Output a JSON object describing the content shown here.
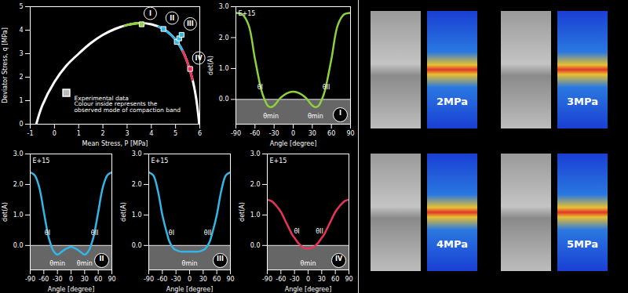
{
  "chart_data": [
    {
      "type": "line",
      "x_label": "Mean Stress, P [MPa]",
      "y_label": "Deviator Stress, q [MPa]",
      "xlim": [
        -1,
        6
      ],
      "ylim": [
        0,
        5
      ],
      "xticks": [
        -1,
        0,
        1,
        2,
        3,
        4,
        5,
        6
      ],
      "yticks": [
        0,
        1,
        2,
        3,
        4,
        5
      ],
      "series": [
        {
          "color": "#ffffff",
          "x": [
            -0.75,
            -0.5,
            0,
            0.5,
            1,
            1.5,
            2,
            2.5,
            3,
            3.5,
            4,
            4.5,
            5,
            5.3,
            5.5,
            5.7,
            5.85,
            5.98
          ],
          "values": [
            0,
            0.8,
            1.8,
            2.5,
            3.0,
            3.45,
            3.8,
            4.05,
            4.22,
            4.3,
            4.25,
            4.05,
            3.6,
            3.1,
            2.6,
            1.9,
            1.1,
            0
          ]
        },
        {
          "color": "#8ed13c",
          "x": [
            2.9,
            3,
            3.5,
            3.7
          ],
          "values": [
            4.19,
            4.22,
            4.3,
            4.29
          ]
        },
        {
          "color": "#33b5e5",
          "x": [
            4.3,
            4.5,
            5,
            5.3
          ],
          "values": [
            4.15,
            4.05,
            3.6,
            3.1
          ]
        },
        {
          "color": "#e8325a",
          "x": [
            5.3,
            5.5,
            5.7
          ],
          "values": [
            3.1,
            2.6,
            1.9
          ]
        }
      ],
      "points": {
        "x": [
          3.6,
          4.5,
          5.05,
          5.15,
          5.25,
          5.6
        ],
        "y": [
          4.25,
          4.05,
          3.5,
          3.65,
          3.8,
          2.35
        ],
        "colors": [
          "#8ed13c",
          "#33b5e5",
          "#33b5e5",
          "#33b5e5",
          "#33b5e5",
          "#e8325a"
        ],
        "labels": [
          "I",
          "II",
          null,
          null,
          "III",
          "IV"
        ]
      },
      "legend_text": [
        "Experimental data",
        "Colour inside represents the",
        "observed mode of compaction band"
      ]
    },
    {
      "type": "line",
      "title": "I",
      "x_label": "Angle [degree]",
      "y_label": "det(A)",
      "multiplier": "E+15",
      "xlim": [
        -90,
        90
      ],
      "ylim": [
        -0.8,
        3.0
      ],
      "xticks": [
        -90,
        -60,
        -30,
        0,
        30,
        60,
        90
      ],
      "yticks": [
        {
          "value": 0,
          "label": "0.0"
        },
        {
          "value": 1,
          "label": "1.0"
        },
        {
          "value": 2,
          "label": "2.0"
        },
        {
          "value": 3,
          "label": "3.0"
        }
      ],
      "hatched_region": [
        -0.8,
        0
      ],
      "series": [
        {
          "color": "#8ed13c",
          "x": [
            -90,
            -80,
            -70,
            -60,
            -50,
            -45,
            -40,
            -35,
            -30,
            -20,
            -10,
            0,
            10,
            20,
            30,
            35,
            40,
            45,
            50,
            60,
            70,
            80,
            90
          ],
          "values": [
            2.8,
            2.75,
            2.4,
            1.3,
            0.3,
            0.0,
            -0.2,
            -0.25,
            -0.2,
            0.05,
            0.2,
            0.25,
            0.2,
            0.05,
            -0.2,
            -0.25,
            -0.2,
            0.0,
            0.3,
            1.3,
            2.4,
            2.75,
            2.8
          ]
        }
      ],
      "annotations": [
        {
          "text": "θI",
          "x": -52,
          "y": 0.4
        },
        {
          "text": "θII",
          "x": 52,
          "y": 0.4
        },
        {
          "text": "θmin",
          "x": -35,
          "y": -0.55
        },
        {
          "text": "θmin",
          "x": 35,
          "y": -0.55
        }
      ]
    },
    {
      "type": "line",
      "title": "II",
      "x_label": "Angle [degree]",
      "y_label": "det(A)",
      "multiplier": "E+15",
      "xlim": [
        -90,
        90
      ],
      "ylim": [
        -0.8,
        3.0
      ],
      "xticks": [
        -90,
        -60,
        -30,
        0,
        30,
        60,
        90
      ],
      "yticks": [
        {
          "value": 0,
          "label": "0.0"
        },
        {
          "value": 1,
          "label": "1.0"
        },
        {
          "value": 2,
          "label": "2.0"
        },
        {
          "value": 3,
          "label": "3.0"
        }
      ],
      "hatched_region": [
        -0.8,
        0
      ],
      "series": [
        {
          "color": "#33b5e5",
          "x": [
            -90,
            -80,
            -70,
            -60,
            -50,
            -45,
            -40,
            -35,
            -30,
            -20,
            -10,
            0,
            10,
            20,
            30,
            35,
            40,
            45,
            50,
            60,
            70,
            80,
            90
          ],
          "values": [
            2.4,
            2.3,
            1.9,
            1.1,
            0.3,
            0.05,
            -0.15,
            -0.25,
            -0.3,
            -0.2,
            -0.1,
            -0.05,
            -0.1,
            -0.2,
            -0.3,
            -0.25,
            -0.15,
            0.05,
            0.3,
            1.1,
            1.9,
            2.3,
            2.4
          ]
        }
      ],
      "annotations": [
        {
          "text": "θI",
          "x": -52,
          "y": 0.4
        },
        {
          "text": "θII",
          "x": 52,
          "y": 0.4
        },
        {
          "text": "θmin",
          "x": -30,
          "y": -0.6
        },
        {
          "text": "θmin",
          "x": 30,
          "y": -0.6
        }
      ]
    },
    {
      "type": "line",
      "title": "III",
      "x_label": "Angle [degree]",
      "y_label": "det(A)",
      "multiplier": "E+15",
      "xlim": [
        -90,
        90
      ],
      "ylim": [
        -0.8,
        3.0
      ],
      "xticks": [
        -90,
        -60,
        -30,
        0,
        30,
        60,
        90
      ],
      "yticks": [
        {
          "value": 0,
          "label": "0.0"
        },
        {
          "value": 1,
          "label": "1.0"
        },
        {
          "value": 2,
          "label": "2.0"
        },
        {
          "value": 3,
          "label": "3.0"
        }
      ],
      "hatched_region": [
        -0.8,
        0
      ],
      "series": [
        {
          "color": "#33b5e5",
          "x": [
            -90,
            -80,
            -70,
            -60,
            -50,
            -45,
            -40,
            -35,
            -30,
            -20,
            -10,
            0,
            10,
            20,
            30,
            35,
            40,
            45,
            50,
            60,
            70,
            80,
            90
          ],
          "values": [
            2.4,
            2.3,
            1.8,
            1.0,
            0.4,
            0.15,
            0.0,
            -0.1,
            -0.15,
            -0.2,
            -0.2,
            -0.2,
            -0.2,
            -0.2,
            -0.15,
            -0.1,
            0.0,
            0.15,
            0.4,
            1.0,
            1.8,
            2.3,
            2.4
          ]
        }
      ],
      "annotations": [
        {
          "text": "θI",
          "x": -40,
          "y": 0.4
        },
        {
          "text": "θII",
          "x": 40,
          "y": 0.4
        },
        {
          "text": "θmin",
          "x": 0,
          "y": -0.6
        }
      ]
    },
    {
      "type": "line",
      "title": "IV",
      "x_label": "Angle [degree]",
      "y_label": "det(A)",
      "multiplier": "E+15",
      "xlim": [
        -90,
        90
      ],
      "ylim": [
        -0.8,
        3.0
      ],
      "xticks": [
        -90,
        -60,
        -30,
        0,
        30,
        60,
        90
      ],
      "yticks": [
        {
          "value": 0,
          "label": "0.0"
        },
        {
          "value": 1,
          "label": "1.0"
        },
        {
          "value": 2,
          "label": "2.0"
        },
        {
          "value": 3,
          "label": "3.0"
        }
      ],
      "hatched_region": [
        -0.8,
        0
      ],
      "series": [
        {
          "color": "#e8325a",
          "x": [
            -90,
            -80,
            -70,
            -60,
            -50,
            -45,
            -40,
            -35,
            -30,
            -20,
            -10,
            0,
            10,
            20,
            30,
            35,
            40,
            45,
            50,
            60,
            70,
            80,
            90
          ],
          "values": [
            1.5,
            1.45,
            1.3,
            1.1,
            0.8,
            0.65,
            0.5,
            0.35,
            0.25,
            0.05,
            -0.07,
            -0.1,
            -0.07,
            0.05,
            0.25,
            0.35,
            0.5,
            0.65,
            0.8,
            1.1,
            1.3,
            1.45,
            1.5
          ]
        }
      ],
      "annotations": [
        {
          "text": "θI",
          "x": -25,
          "y": 0.45
        },
        {
          "text": "θII",
          "x": 25,
          "y": 0.45
        },
        {
          "text": "θmin",
          "x": 0,
          "y": -0.6
        }
      ]
    }
  ],
  "images": {
    "labels": [
      "2MPa",
      "3MPa",
      "4MPa",
      "5MPa"
    ]
  }
}
